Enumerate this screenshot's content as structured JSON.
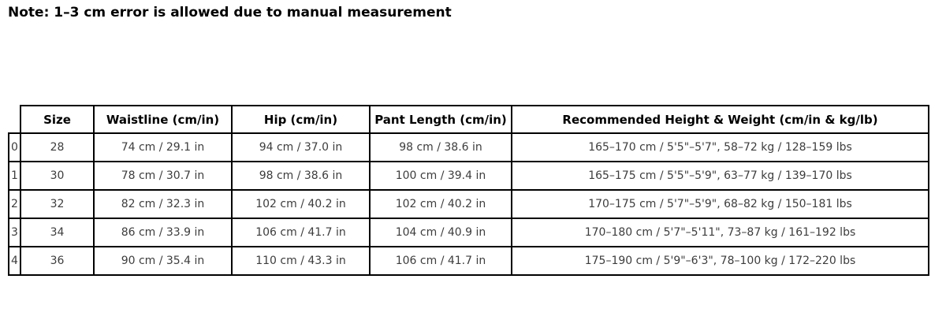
{
  "note": "Note: 1–3 cm error is allowed due to manual measurement",
  "colors": {
    "background": "#ffffff",
    "border": "#000000",
    "header_text": "#000000",
    "cell_text": "#3d3d3d"
  },
  "chart_data": {
    "type": "table",
    "title": "",
    "note": "Note: 1–3 cm error is allowed due to manual measurement",
    "columns": [
      "Size",
      "Waistline (cm/in)",
      "Hip (cm/in)",
      "Pant Length (cm/in)",
      "Recommended Height & Weight (cm/in & kg/lb)"
    ],
    "index": [
      "0",
      "1",
      "2",
      "3",
      "4"
    ],
    "rows": [
      [
        "28",
        "74 cm / 29.1 in",
        "94 cm / 37.0 in",
        "98 cm / 38.6 in",
        "165–170 cm / 5'5\"–5'7\", 58–72 kg / 128–159 lbs"
      ],
      [
        "30",
        "78 cm / 30.7 in",
        "98 cm / 38.6 in",
        "100 cm / 39.4 in",
        "165–175 cm / 5'5\"–5'9\", 63–77 kg / 139–170 lbs"
      ],
      [
        "32",
        "82 cm / 32.3 in",
        "102 cm / 40.2 in",
        "102 cm / 40.2 in",
        "170–175 cm / 5'7\"–5'9\", 68–82 kg / 150–181 lbs"
      ],
      [
        "34",
        "86 cm / 33.9 in",
        "106 cm / 41.7 in",
        "104 cm / 40.9 in",
        "170–180 cm / 5'7\"–5'11\", 73–87 kg / 161–192 lbs"
      ],
      [
        "36",
        "90 cm / 35.4 in",
        "110 cm / 43.3 in",
        "106 cm / 41.7 in",
        "175–190 cm / 5'9\"–6'3\", 78–100 kg / 172–220 lbs"
      ]
    ]
  }
}
